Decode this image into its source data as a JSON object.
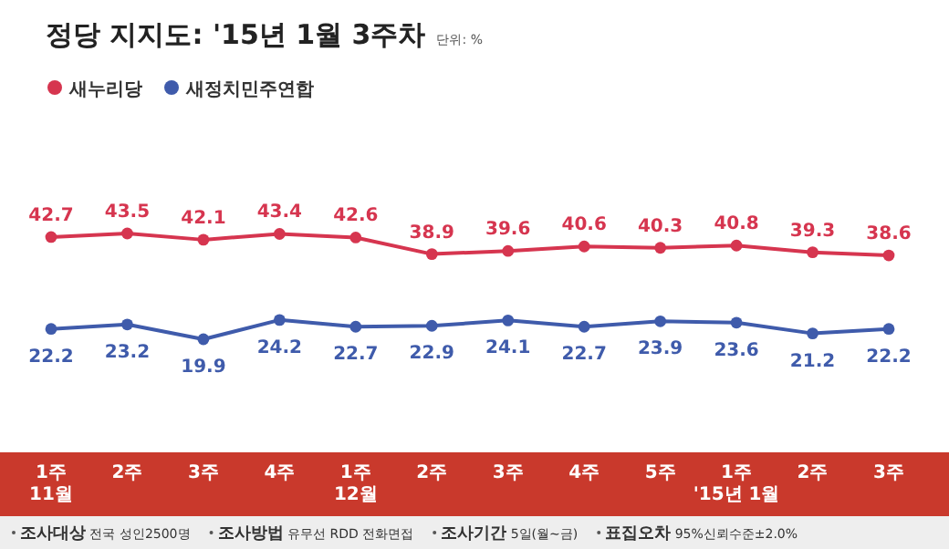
{
  "chart_data": {
    "type": "line",
    "title": "정당 지지도: '15년 1월 3주차",
    "subtitle": "단위: %",
    "categories": [
      "1주\n11월",
      "2주",
      "3주",
      "4주",
      "1주\n12월",
      "2주",
      "3주",
      "4주",
      "5주",
      "1주\n'15년 1월",
      "2주",
      "3주"
    ],
    "series": [
      {
        "name": "새누리당",
        "color": "#d6354f",
        "values": [
          42.7,
          43.5,
          42.1,
          43.4,
          42.6,
          38.9,
          39.6,
          40.6,
          40.3,
          40.8,
          39.3,
          38.6
        ]
      },
      {
        "name": "새정치민주연합",
        "color": "#3f5bab",
        "values": [
          22.2,
          23.2,
          19.9,
          24.2,
          22.7,
          22.9,
          24.1,
          22.7,
          23.9,
          23.6,
          21.2,
          22.2
        ]
      }
    ],
    "data_labels": true,
    "legend": "top left",
    "marker": "circle",
    "annotations": [
      "**조사대상** 전국 성인2500명",
      "**조사방법** 유무선 RDD 전화면접",
      "**조사기간** 5일(월~금)",
      "**표집오차** 95%신뢰수준±2.0%"
    ]
  }
}
